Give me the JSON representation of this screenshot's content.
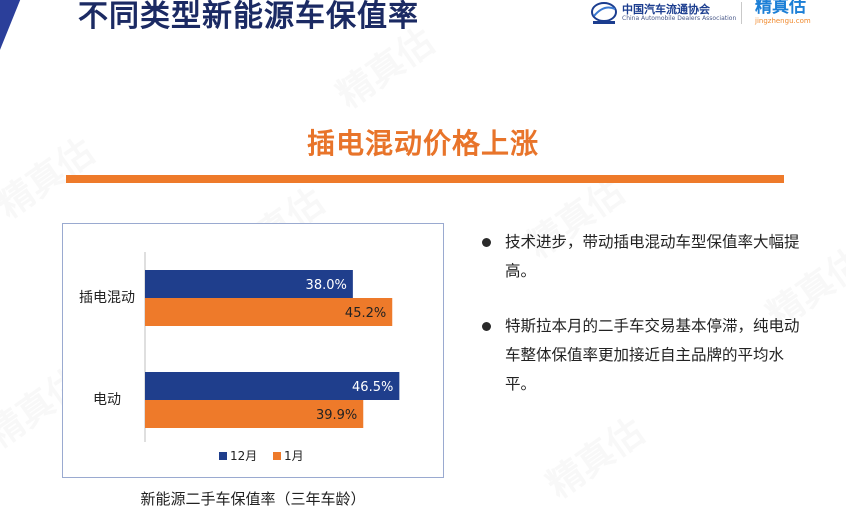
{
  "header": {
    "title": "不同类型新能源车保值率"
  },
  "logos": {
    "cada_cn": "中国汽车流通协会",
    "cada_en": "China Automobile Dealers Association",
    "jzg_name": "精真估",
    "jzg_url": "jingzhengu.com"
  },
  "subtitle": "插电混动价格上涨",
  "chart_caption": "新能源二手车保值率（三年车龄）",
  "bullets": [
    "技术进步，带动插电混动车型保值率大幅提高。",
    "特斯拉本月的二手车交易基本停滞，纯电动车整体保值率更加接近自主品牌的平均水平。"
  ],
  "chart_data": {
    "type": "bar",
    "orientation": "horizontal",
    "categories": [
      "插电混动",
      "电动"
    ],
    "series": [
      {
        "name": "12月",
        "values": [
          38.0,
          46.5
        ],
        "labels": [
          "38.0%",
          "46.5%"
        ],
        "color": "#1f3e8c"
      },
      {
        "name": "1月",
        "values": [
          45.2,
          39.9
        ],
        "labels": [
          "45.2%",
          "39.9%"
        ],
        "color": "#ee7a2a"
      }
    ],
    "unit": "%",
    "xlim": [
      0,
      100
    ],
    "grid": false,
    "legend": "bottom-center"
  },
  "watermark": "精真估"
}
